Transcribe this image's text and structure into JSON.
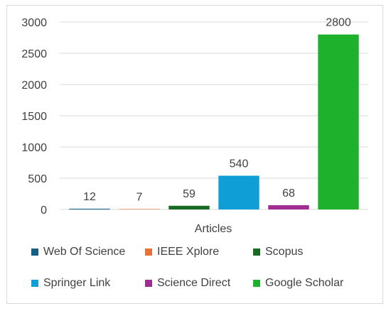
{
  "chart_data": {
    "type": "bar",
    "categories": [
      "Articles"
    ],
    "xlabel": "Articles",
    "ylim": [
      0,
      3000
    ],
    "yticks": [
      0,
      500,
      1000,
      1500,
      2000,
      2500,
      3000
    ],
    "grid": true,
    "legend_position": "bottom",
    "series": [
      {
        "name": "Web Of Science",
        "values": [
          12
        ],
        "color": "#156082"
      },
      {
        "name": "IEEE Xplore",
        "values": [
          7
        ],
        "color": "#e97132"
      },
      {
        "name": "Scopus",
        "values": [
          59
        ],
        "color": "#196b24"
      },
      {
        "name": "Springer Link",
        "values": [
          540
        ],
        "color": "#0f9ed5"
      },
      {
        "name": "Science Direct",
        "values": [
          68
        ],
        "color": "#a02b93"
      },
      {
        "name": "Google Scholar",
        "values": [
          2800
        ],
        "color": "#1eb12c"
      }
    ]
  }
}
